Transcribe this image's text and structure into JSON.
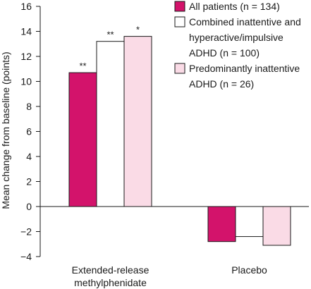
{
  "chart_data": {
    "type": "bar",
    "ylabel": "Mean change from baseline (points)",
    "ylim": [
      -4,
      16
    ],
    "yticks": [
      16,
      14,
      12,
      10,
      8,
      6,
      4,
      2,
      0,
      -2,
      -4
    ],
    "ytick_labels": [
      "16",
      "14",
      "12",
      "10",
      "8",
      "6",
      "4",
      "2",
      "0",
      "−2",
      "−4"
    ],
    "categories": [
      "Extended-release methylphenidate",
      "Placebo"
    ],
    "category_lines": [
      [
        "Extended-release",
        "methylphenidate"
      ],
      [
        "Placebo"
      ]
    ],
    "series": [
      {
        "name": "All  patients (n = 134)",
        "legend_lines": [
          "All  patients (n = 134)"
        ],
        "color": "#d3136b",
        "values": [
          10.7,
          -2.8
        ],
        "labels": [
          "**",
          ""
        ]
      },
      {
        "name": "Combined inattentive and hyperactive/impulsive ADHD (n = 100)",
        "legend_lines": [
          "Combined inattentive and",
          "hyperactive/impulsive",
          "ADHD (n = 100)"
        ],
        "color": "#ffffff",
        "values": [
          13.2,
          -2.4
        ],
        "labels": [
          "**",
          ""
        ]
      },
      {
        "name": "Predominantly inattentive ADHD (n = 26)",
        "legend_lines": [
          "Predominantly inattentive",
          "ADHD (n = 26)"
        ],
        "color": "#fadbe6",
        "values": [
          13.6,
          -3.1
        ],
        "labels": [
          "*",
          ""
        ]
      }
    ]
  }
}
